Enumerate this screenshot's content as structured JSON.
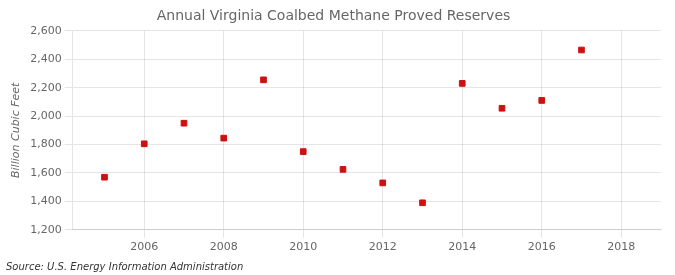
{
  "chart_data": {
    "type": "scatter",
    "title": "Annual Virginia Coalbed Methane Proved Reserves",
    "ylabel": "Billion Cubic Feet",
    "annotations": [
      "Source: U.S. Energy Information Administration"
    ],
    "x": [
      2005,
      2006,
      2007,
      2008,
      2009,
      2010,
      2011,
      2012,
      2013,
      2014,
      2015,
      2016,
      2017
    ],
    "values": [
      1570,
      1805,
      1950,
      1845,
      2255,
      1750,
      1625,
      1530,
      1390,
      2230,
      2055,
      2110,
      2465
    ],
    "color": "#cc1111",
    "marker": "square",
    "xlim": [
      2004.2,
      2019.0
    ],
    "ylim": [
      1200,
      2600
    ],
    "xticks": [
      2006,
      2008,
      2010,
      2012,
      2014,
      2016,
      2018
    ],
    "yticks": [
      {
        "value": 1200,
        "label": "1,200"
      },
      {
        "value": 1400,
        "label": "1,400"
      },
      {
        "value": 1600,
        "label": "1,600"
      },
      {
        "value": 1800,
        "label": "1,800"
      },
      {
        "value": 2000,
        "label": "2,000"
      },
      {
        "value": 2200,
        "label": "2,200"
      },
      {
        "value": 2400,
        "label": "2,400"
      },
      {
        "value": 2600,
        "label": "2,600"
      }
    ],
    "grid": true
  }
}
